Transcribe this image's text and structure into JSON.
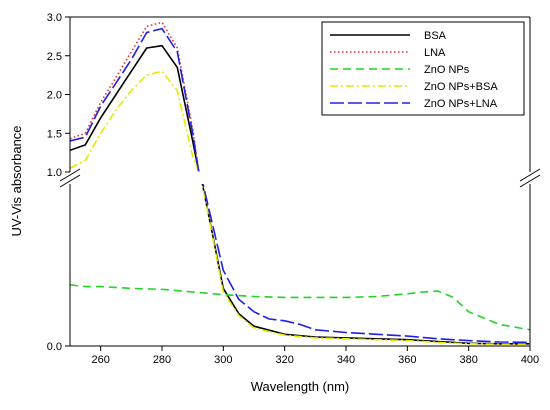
{
  "chart_data": {
    "type": "line",
    "xlabel": "Wavelength (nm)",
    "ylabel": "UV-Vis absorbance",
    "xlim": [
      250,
      400
    ],
    "x_ticks": [
      260,
      280,
      300,
      320,
      340,
      360,
      380,
      400
    ],
    "axis_break": true,
    "upper_panel": {
      "ylim": [
        1.0,
        3.0
      ],
      "y_ticks": [
        1.0,
        1.5,
        2.0,
        2.5,
        3.0
      ]
    },
    "lower_panel": {
      "ylim": [
        0.0,
        0.9
      ],
      "y_ticks": [
        0.0
      ]
    },
    "legend_position": "top-right",
    "grid": false,
    "series": [
      {
        "name": "BSA",
        "color": "#000000",
        "dash": "solid",
        "x": [
          250,
          255,
          260,
          265,
          270,
          275,
          280,
          285,
          290,
          292,
          300,
          305,
          310,
          320,
          330,
          340,
          350,
          360,
          370,
          380,
          390,
          400
        ],
        "y": [
          1.28,
          1.35,
          1.7,
          2.0,
          2.3,
          2.6,
          2.63,
          2.35,
          1.4,
          1.0,
          0.32,
          0.18,
          0.11,
          0.065,
          0.05,
          0.045,
          0.04,
          0.035,
          0.025,
          0.015,
          0.012,
          0.012
        ]
      },
      {
        "name": "LNA",
        "color": "#e0302e",
        "dash": "dotted",
        "x": [
          250,
          255,
          260,
          265,
          270,
          275,
          280,
          285,
          290,
          292
        ],
        "y": [
          1.43,
          1.5,
          1.9,
          2.22,
          2.55,
          2.88,
          2.93,
          2.6,
          1.55,
          1.0
        ]
      },
      {
        "name": "ZnO NPs",
        "color": "#22d322",
        "dash": "dashed",
        "x": [
          250,
          255,
          260,
          270,
          280,
          290,
          300,
          310,
          320,
          340,
          350,
          360,
          365,
          370,
          375,
          380,
          390,
          400
        ],
        "y": [
          0.34,
          0.33,
          0.33,
          0.32,
          0.315,
          0.3,
          0.285,
          0.275,
          0.27,
          0.27,
          0.275,
          0.29,
          0.3,
          0.305,
          0.27,
          0.19,
          0.12,
          0.09
        ]
      },
      {
        "name": "ZnO NPs+BSA",
        "color": "#e8e800",
        "dash": "dashdot",
        "x": [
          250,
          255,
          260,
          265,
          270,
          275,
          280,
          285,
          290,
          292,
          300,
          305,
          310,
          320,
          330,
          340,
          350,
          360,
          370,
          380,
          390,
          400
        ],
        "y": [
          1.05,
          1.15,
          1.5,
          1.8,
          2.05,
          2.25,
          2.3,
          2.05,
          1.2,
          1.0,
          0.3,
          0.17,
          0.1,
          0.06,
          0.045,
          0.04,
          0.035,
          0.03,
          0.02,
          0.012,
          0.01,
          0.01
        ]
      },
      {
        "name": "ZnO NPs+LNA",
        "color": "#2020e6",
        "dash": "longdash",
        "x": [
          250,
          255,
          260,
          265,
          270,
          275,
          280,
          285,
          290,
          292,
          300,
          305,
          310,
          315,
          320,
          325,
          330,
          340,
          350,
          360,
          370,
          380,
          390,
          400
        ],
        "y": [
          1.4,
          1.45,
          1.85,
          2.15,
          2.45,
          2.8,
          2.85,
          2.55,
          1.5,
          1.0,
          0.42,
          0.26,
          0.19,
          0.15,
          0.14,
          0.12,
          0.09,
          0.075,
          0.065,
          0.055,
          0.04,
          0.03,
          0.022,
          0.02
        ]
      }
    ]
  }
}
